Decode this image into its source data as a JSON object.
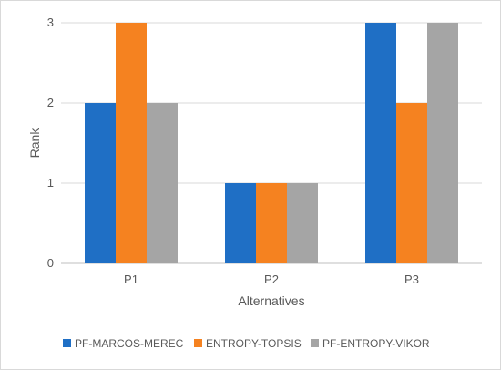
{
  "chart_data": {
    "type": "bar",
    "title": "",
    "xlabel": "Alternatives",
    "ylabel": "Rank",
    "categories": [
      "P1",
      "P2",
      "P3"
    ],
    "series": [
      {
        "name": "PF-MARCOS-MEREC",
        "values": [
          2,
          1,
          3
        ],
        "color": "#1f6fc5"
      },
      {
        "name": "ENTROPY-TOPSIS",
        "values": [
          3,
          1,
          2
        ],
        "color": "#f58220"
      },
      {
        "name": "PF-ENTROPY-VIKOR",
        "values": [
          2,
          1,
          3
        ],
        "color": "#a5a5a5"
      }
    ],
    "ylim": [
      0,
      3
    ],
    "yticks": [
      0,
      1,
      2,
      3
    ],
    "grid": true,
    "legend_position": "bottom"
  }
}
